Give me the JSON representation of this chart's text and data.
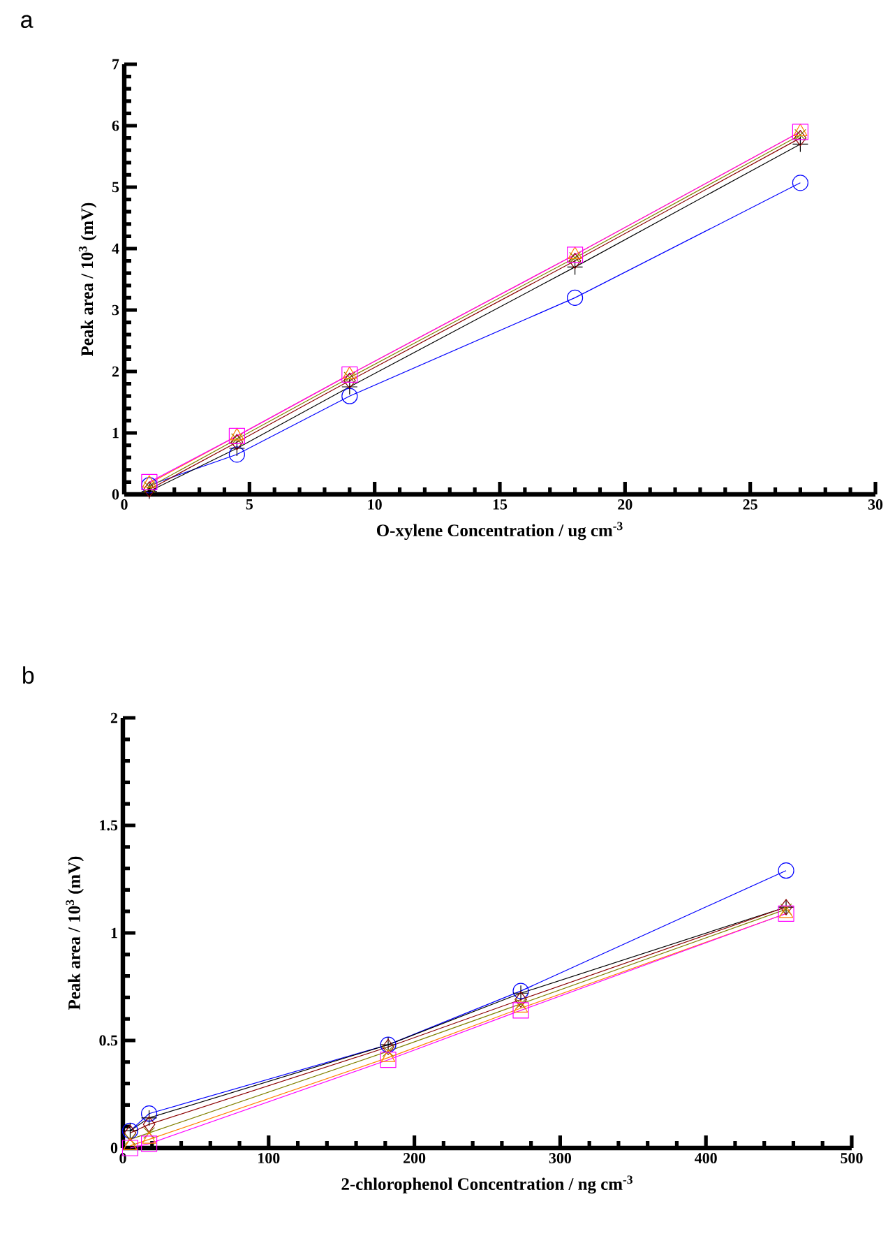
{
  "chart_data": [
    {
      "type": "line",
      "title": "a",
      "xlabel": "O-xylene Concentration / ug cm$^{-3}$",
      "ylabel": "Peak area / 10$^{3}$ (mV)",
      "x": [
        1,
        4.5,
        9,
        18,
        27
      ],
      "xlim": [
        0,
        30
      ],
      "xticks": [
        0,
        5,
        10,
        15,
        20,
        25,
        30
      ],
      "ylim": [
        0,
        7
      ],
      "yticks": [
        0,
        1,
        2,
        3,
        4,
        5,
        6,
        7
      ],
      "grid": false,
      "line_style": "solid",
      "series": [
        {
          "color": "#0000ff",
          "marker": "circle",
          "values": [
            0.15,
            0.65,
            1.6,
            3.2,
            5.07
          ]
        },
        {
          "color": "#000000",
          "marker": "plus",
          "values": [
            0.05,
            0.75,
            1.75,
            3.7,
            5.7
          ]
        },
        {
          "color": "#8b0000",
          "marker": "diamond",
          "values": [
            0.08,
            0.85,
            1.85,
            3.8,
            5.8
          ]
        },
        {
          "color": "#808000",
          "marker": "cross",
          "values": [
            0.12,
            0.9,
            1.9,
            3.85,
            5.85
          ]
        },
        {
          "color": "#ff8000",
          "marker": "triangle",
          "values": [
            0.18,
            0.95,
            1.95,
            3.9,
            5.9
          ]
        },
        {
          "color": "#ff00ff",
          "marker": "square",
          "values": [
            0.2,
            0.95,
            1.95,
            3.9,
            5.9
          ]
        }
      ]
    },
    {
      "type": "line",
      "title": "b",
      "xlabel": "2-chlorophenol Concentration / ng cm$^{-3}$",
      "ylabel": "Peak area / 10$^{3}$ (mV)",
      "x": [
        5,
        18,
        182,
        273,
        455
      ],
      "xlim": [
        0,
        500
      ],
      "xticks": [
        0,
        100,
        200,
        300,
        400,
        500
      ],
      "ylim": [
        0,
        2
      ],
      "yticks": [
        0,
        0.5,
        1,
        1.5,
        2
      ],
      "grid": false,
      "line_style": "solid",
      "series": [
        {
          "color": "#0000ff",
          "marker": "circle",
          "values": [
            0.08,
            0.16,
            0.48,
            0.73,
            1.29
          ]
        },
        {
          "color": "#000000",
          "marker": "plus",
          "values": [
            0.08,
            0.14,
            0.48,
            0.72,
            1.12
          ]
        },
        {
          "color": "#8b0000",
          "marker": "diamond",
          "values": [
            0.07,
            0.11,
            0.47,
            0.69,
            1.12
          ]
        },
        {
          "color": "#808000",
          "marker": "cross",
          "values": [
            0.04,
            0.07,
            0.45,
            0.67,
            1.11
          ]
        },
        {
          "color": "#ff8000",
          "marker": "triangle",
          "values": [
            0.01,
            0.04,
            0.42,
            0.65,
            1.09
          ]
        },
        {
          "color": "#ff00ff",
          "marker": "square",
          "values": [
            0.0,
            0.02,
            0.41,
            0.64,
            1.09
          ]
        }
      ]
    }
  ]
}
